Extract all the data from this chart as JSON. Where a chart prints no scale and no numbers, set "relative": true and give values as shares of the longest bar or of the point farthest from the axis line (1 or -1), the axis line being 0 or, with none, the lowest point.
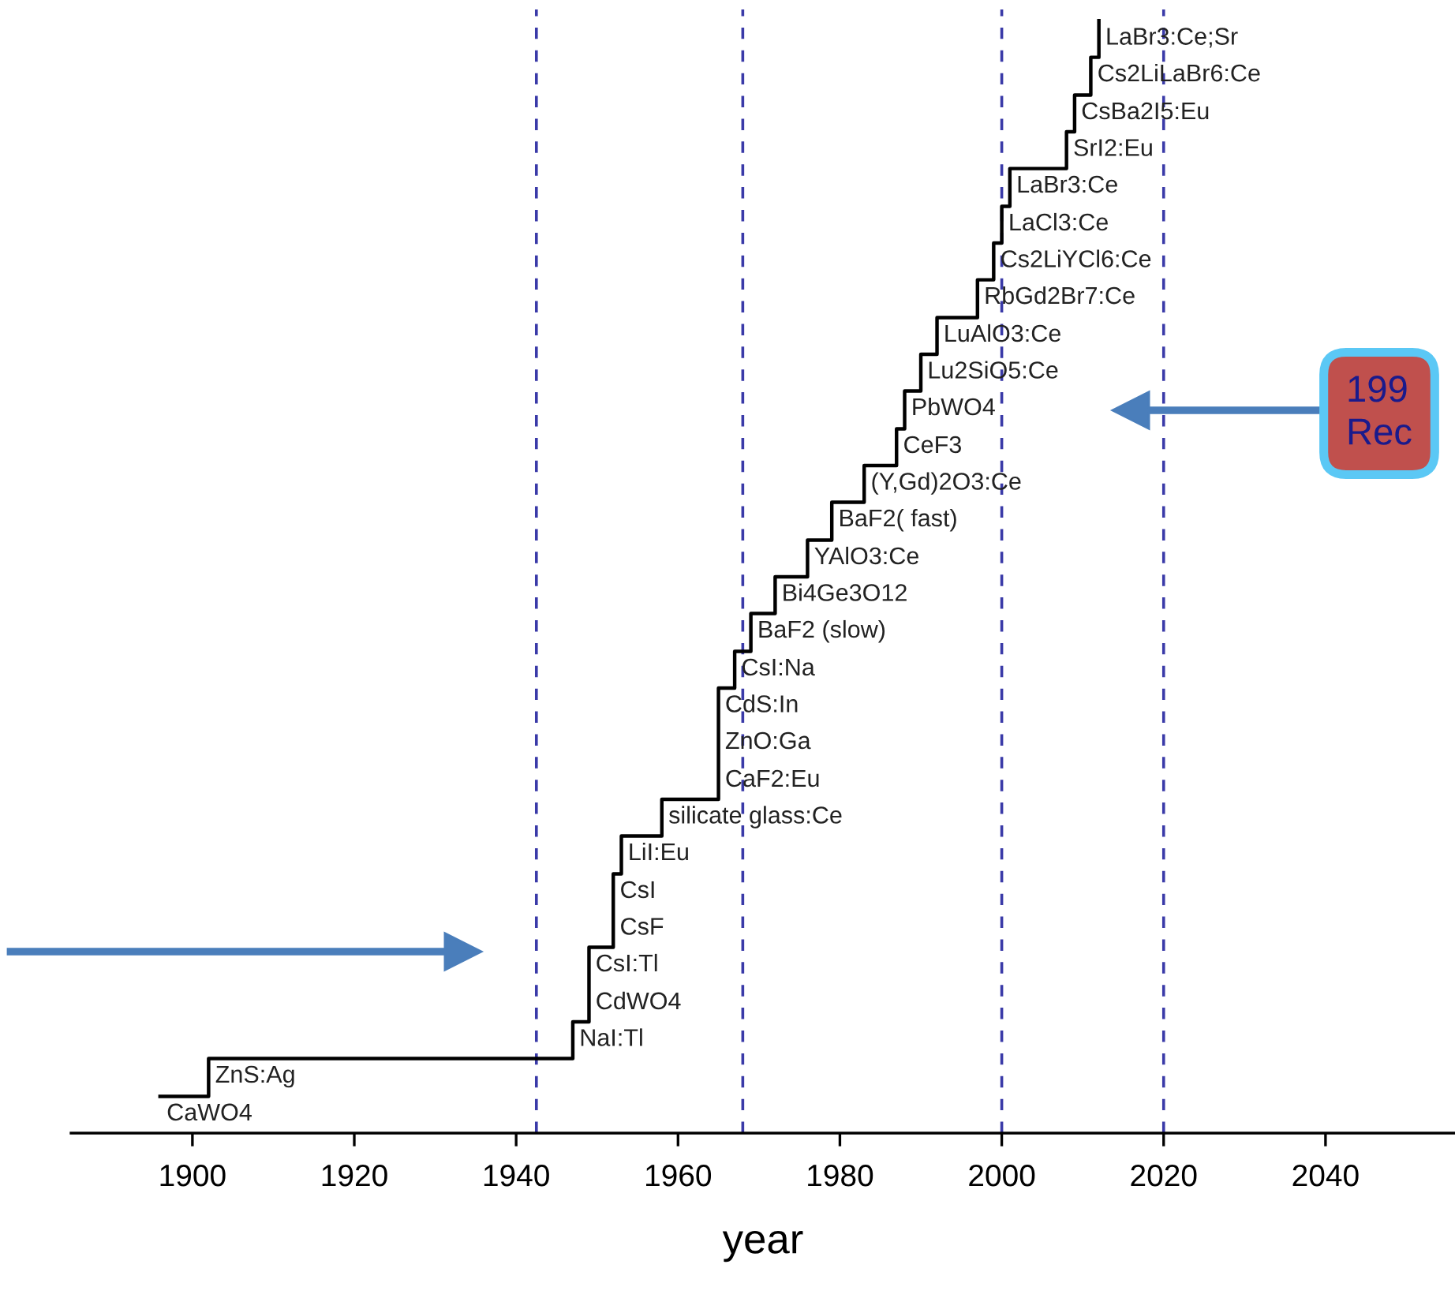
{
  "chart_data": {
    "type": "step",
    "relative": true,
    "xlabel": "year",
    "x": [
      1896,
      1902,
      1947,
      1949,
      1949,
      1952,
      1952,
      1953,
      1958,
      1965,
      1965,
      1965,
      1967,
      1969,
      1972,
      1976,
      1979,
      1983,
      1987,
      1988,
      1990,
      1992,
      1997,
      1999,
      2000,
      2001,
      2008,
      2009,
      2011,
      2012
    ],
    "values": [
      0.033,
      0.067,
      0.1,
      0.133,
      0.167,
      0.2,
      0.233,
      0.267,
      0.3,
      0.333,
      0.367,
      0.4,
      0.433,
      0.467,
      0.5,
      0.533,
      0.567,
      0.6,
      0.633,
      0.667,
      0.7,
      0.733,
      0.767,
      0.8,
      0.833,
      0.867,
      0.9,
      0.933,
      0.967,
      1
    ],
    "color": "#000000",
    "xlim": [
      1885,
      2056
    ],
    "xticks": [
      1900,
      1920,
      1940,
      1960,
      1980,
      2000,
      2020,
      2040
    ],
    "grid": false,
    "ref_lines": [
      {
        "axis": "x",
        "value": 1942.5,
        "color": "#3a3aa8",
        "line_style": "dashed"
      },
      {
        "axis": "x",
        "value": 1968,
        "color": "#3a3aa8",
        "line_style": "dashed"
      },
      {
        "axis": "x",
        "value": 2000,
        "color": "#3a3aa8",
        "line_style": "dashed"
      },
      {
        "axis": "x",
        "value": 2020,
        "color": "#3a3aa8",
        "line_style": "dashed"
      }
    ],
    "annotations": [
      {
        "text": "CaWO4",
        "x": 1896,
        "y": 0.033
      },
      {
        "text": "ZnS:Ag",
        "x": 1902,
        "y": 0.067
      },
      {
        "text": "NaI:Tl",
        "x": 1947,
        "y": 0.1
      },
      {
        "text": "CdWO4",
        "x": 1949,
        "y": 0.133
      },
      {
        "text": "CsI:Tl",
        "x": 1949,
        "y": 0.167
      },
      {
        "text": "CsF",
        "x": 1952,
        "y": 0.2
      },
      {
        "text": "CsI",
        "x": 1952,
        "y": 0.233
      },
      {
        "text": "LiI:Eu",
        "x": 1953,
        "y": 0.267
      },
      {
        "text": "silicate glass:Ce",
        "x": 1958,
        "y": 0.3
      },
      {
        "text": "CaF2:Eu",
        "x": 1965,
        "y": 0.333
      },
      {
        "text": "ZnO:Ga",
        "x": 1965,
        "y": 0.367
      },
      {
        "text": "CdS:In",
        "x": 1965,
        "y": 0.4
      },
      {
        "text": "CsI:Na",
        "x": 1967,
        "y": 0.433
      },
      {
        "text": "BaF2 (slow)",
        "x": 1969,
        "y": 0.467
      },
      {
        "text": "Bi4Ge3O12",
        "x": 1972,
        "y": 0.5
      },
      {
        "text": "YAlO3:Ce",
        "x": 1976,
        "y": 0.533
      },
      {
        "text": "BaF2( fast)",
        "x": 1979,
        "y": 0.567
      },
      {
        "text": "(Y,Gd)2O3:Ce",
        "x": 1983,
        "y": 0.6
      },
      {
        "text": "CeF3",
        "x": 1987,
        "y": 0.633
      },
      {
        "text": "PbWO4",
        "x": 1988,
        "y": 0.667
      },
      {
        "text": "Lu2SiO5:Ce",
        "x": 1990,
        "y": 0.7
      },
      {
        "text": "LuAlO3:Ce",
        "x": 1992,
        "y": 0.733
      },
      {
        "text": "RbGd2Br7:Ce",
        "x": 1997,
        "y": 0.767
      },
      {
        "text": "Cs2LiYCl6:Ce",
        "x": 1999,
        "y": 0.8
      },
      {
        "text": "LaCl3:Ce",
        "x": 2000,
        "y": 0.833
      },
      {
        "text": "LaBr3:Ce",
        "x": 2001,
        "y": 0.867
      },
      {
        "text": "SrI2:Eu",
        "x": 2008,
        "y": 0.9
      },
      {
        "text": "CsBa2I5:Eu",
        "x": 2009,
        "y": 0.933
      },
      {
        "text": "Cs2LiLaBr6:Ce",
        "x": 2011,
        "y": 0.967
      },
      {
        "text": "LaBr3:Ce;Sr",
        "x": 2012,
        "y": 1
      },
      "199\nRec"
    ]
  }
}
